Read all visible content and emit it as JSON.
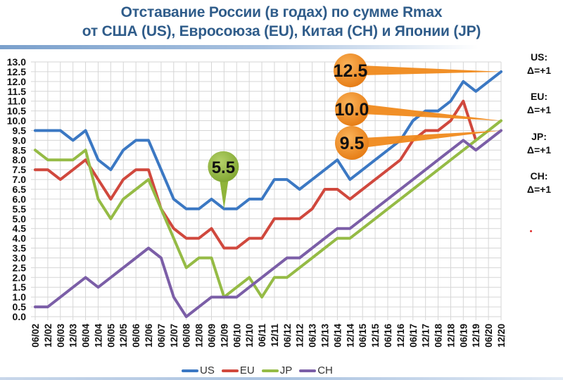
{
  "title": {
    "line1": "Отставание России (в годах) по сумме Rmax",
    "line2": "от США (US), Евросоюза (EU), Китая (CH) и Японии (JP)"
  },
  "deltas": [
    {
      "country": "US:",
      "value": "Δ=+1"
    },
    {
      "country": "EU:",
      "value": "Δ=+1"
    },
    {
      "country": "JP:",
      "value": "Δ=+1"
    },
    {
      "country": "CH:",
      "value": "Δ=+1"
    }
  ],
  "callouts": [
    {
      "label": "12.5",
      "color": "#f08a1c",
      "target_series": "US"
    },
    {
      "label": "10.0",
      "color": "#f08a1c",
      "target_series": "JP"
    },
    {
      "label": "9.5",
      "color": "#f08a1c",
      "target_series": "CH"
    },
    {
      "label": "5.5",
      "color": "#8fb43a",
      "target_series": "US",
      "target_category": "12/09"
    }
  ],
  "legend": [
    {
      "name": "US",
      "color": "#3b78c3"
    },
    {
      "name": "EU",
      "color": "#d0483d"
    },
    {
      "name": "JP",
      "color": "#95bb45"
    },
    {
      "name": "CH",
      "color": "#7b5ea7"
    }
  ],
  "chart_data": {
    "type": "line",
    "title": "Отставание России (в годах) по сумме Rmax от США (US), Евросоюза (EU), Китая (CH) и Японии (JP)",
    "xlabel": "",
    "ylabel": "",
    "ylim": [
      0,
      13
    ],
    "ytick_step": 0.5,
    "yticks": [
      "0.0",
      "0.5",
      "1.0",
      "1.5",
      "2.0",
      "2.5",
      "3.0",
      "3.5",
      "4.0",
      "4.5",
      "5.0",
      "5.5",
      "6.0",
      "6.5",
      "7.0",
      "7.5",
      "8.0",
      "8.5",
      "9.0",
      "9.5",
      "10.0",
      "10.5",
      "11.0",
      "11.5",
      "12.0",
      "12.5",
      "13.0"
    ],
    "grid": true,
    "legend_position": "bottom",
    "categories": [
      "06/02",
      "12/02",
      "06/03",
      "12/03",
      "06/04",
      "12/04",
      "06/05",
      "12/05",
      "06/06",
      "12/06",
      "06/07",
      "12/07",
      "06/08",
      "12/08",
      "06/09",
      "12/09",
      "06/10",
      "12/10",
      "06/11",
      "12/11",
      "06/12",
      "12/12",
      "06/13",
      "12/13",
      "06/14",
      "12/14",
      "06/15",
      "12/15",
      "06/16",
      "12/16",
      "06/17",
      "12/17",
      "06/18",
      "12/18",
      "06/19",
      "12/19",
      "06/20",
      "12/20"
    ],
    "series": [
      {
        "name": "US",
        "color": "#3b78c3",
        "values": [
          9.5,
          9.5,
          9.5,
          9.0,
          9.5,
          8.0,
          7.5,
          8.5,
          9.0,
          9.0,
          7.5,
          6.0,
          5.5,
          5.5,
          6.0,
          5.5,
          5.5,
          6.0,
          6.0,
          7.0,
          7.0,
          6.5,
          7.0,
          7.5,
          8.0,
          7.0,
          7.5,
          8.0,
          8.5,
          9.0,
          10.0,
          10.5,
          10.5,
          11.0,
          12.0,
          11.5,
          12.0,
          12.5
        ]
      },
      {
        "name": "EU",
        "color": "#d0483d",
        "values": [
          7.5,
          7.5,
          7.0,
          7.5,
          8.0,
          7.0,
          6.0,
          7.0,
          7.5,
          7.5,
          5.5,
          4.5,
          4.0,
          4.0,
          4.5,
          3.5,
          3.5,
          4.0,
          4.0,
          5.0,
          5.0,
          5.0,
          5.5,
          6.5,
          6.5,
          6.0,
          6.5,
          7.0,
          7.5,
          8.0,
          9.0,
          9.5,
          9.5,
          10.0,
          11.0,
          9.0,
          null,
          null
        ]
      },
      {
        "name": "JP",
        "color": "#95bb45",
        "values": [
          8.5,
          8.0,
          8.0,
          8.0,
          8.5,
          6.0,
          5.0,
          6.0,
          6.5,
          7.0,
          5.5,
          4.0,
          2.5,
          3.0,
          3.0,
          1.0,
          1.5,
          2.0,
          1.0,
          2.0,
          2.0,
          2.5,
          3.0,
          3.5,
          4.0,
          4.0,
          4.5,
          5.0,
          5.5,
          6.0,
          6.5,
          7.0,
          7.5,
          8.0,
          8.5,
          9.0,
          9.5,
          10.0
        ]
      },
      {
        "name": "CH",
        "color": "#7b5ea7",
        "values": [
          0.5,
          0.5,
          1.0,
          1.5,
          2.0,
          1.5,
          2.0,
          2.5,
          3.0,
          3.5,
          3.0,
          1.0,
          0.0,
          0.5,
          1.0,
          1.0,
          1.0,
          1.5,
          2.0,
          2.5,
          3.0,
          3.0,
          3.5,
          4.0,
          4.5,
          4.5,
          5.0,
          5.5,
          6.0,
          6.5,
          7.0,
          7.5,
          8.0,
          8.5,
          9.0,
          8.5,
          9.0,
          9.5
        ]
      }
    ],
    "annotations": [
      {
        "text": "12.5",
        "points_to": "US 12/20"
      },
      {
        "text": "10.0",
        "points_to": "JP 12/20"
      },
      {
        "text": "9.5",
        "points_to": "CH 12/20"
      },
      {
        "text": "5.5",
        "points_to": "US 12/09"
      },
      {
        "text": "US: Δ=+1"
      },
      {
        "text": "EU: Δ=+1"
      },
      {
        "text": "JP: Δ=+1"
      },
      {
        "text": "CH: Δ=+1"
      }
    ]
  }
}
